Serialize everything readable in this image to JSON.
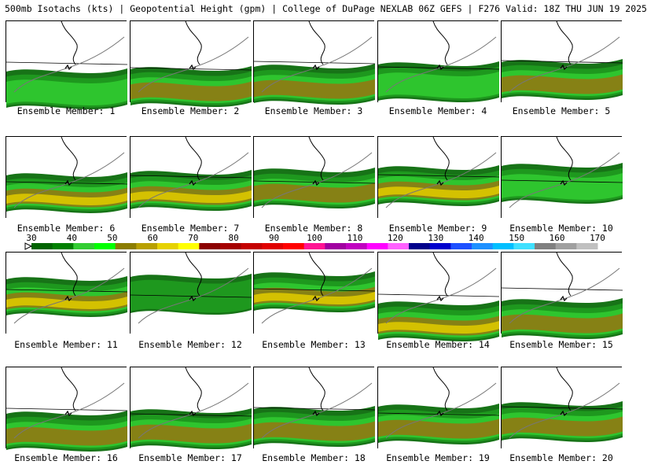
{
  "header": "500mb Isotachs (kts) | Geopotential Height (gpm) | College of DuPage NEXLAB  06Z GEFS | F276 Valid: 18Z THU JUN 19 2025",
  "members": [
    {
      "label": "Ensemble Member: 1",
      "intensity": 1
    },
    {
      "label": "Ensemble Member: 2",
      "intensity": 2
    },
    {
      "label": "Ensemble Member: 3",
      "intensity": 2
    },
    {
      "label": "Ensemble Member: 4",
      "intensity": 1
    },
    {
      "label": "Ensemble Member: 5",
      "intensity": 2
    },
    {
      "label": "Ensemble Member: 6",
      "intensity": 4
    },
    {
      "label": "Ensemble Member: 7",
      "intensity": 4
    },
    {
      "label": "Ensemble Member: 8",
      "intensity": 2
    },
    {
      "label": "Ensemble Member: 9",
      "intensity": 4
    },
    {
      "label": "Ensemble Member: 10",
      "intensity": 1
    },
    {
      "label": "Ensemble Member: 11",
      "intensity": 3
    },
    {
      "label": "Ensemble Member: 12",
      "intensity": 0
    },
    {
      "label": "Ensemble Member: 13",
      "intensity": 4
    },
    {
      "label": "Ensemble Member: 14",
      "intensity": 4
    },
    {
      "label": "Ensemble Member: 15",
      "intensity": 2
    },
    {
      "label": "Ensemble Member: 16",
      "intensity": 2
    },
    {
      "label": "Ensemble Member: 17",
      "intensity": 2
    },
    {
      "label": "Ensemble Member: 18",
      "intensity": 2
    },
    {
      "label": "Ensemble Member: 19",
      "intensity": 2
    },
    {
      "label": "Ensemble Member: 20",
      "intensity": 2
    }
  ],
  "colorbar": {
    "ticks": [
      "30",
      "40",
      "50",
      "60",
      "70",
      "80",
      "90",
      "100",
      "110",
      "120",
      "130",
      "140",
      "150",
      "160",
      "170"
    ],
    "colors": [
      "#006400",
      "#008000",
      "#32cd32",
      "#00ff00",
      "#8b7d00",
      "#b8a000",
      "#e6d200",
      "#ffff00",
      "#8b0000",
      "#a50000",
      "#c40000",
      "#e00000",
      "#ff0000",
      "#ff1493",
      "#a000a0",
      "#c000c0",
      "#ff00ff",
      "#ff60ff",
      "#00008b",
      "#0000cd",
      "#1e50ff",
      "#1e90ff",
      "#00bfff",
      "#40e0ff",
      "#808080",
      "#a0a0a0",
      "#c0c0c0"
    ]
  }
}
